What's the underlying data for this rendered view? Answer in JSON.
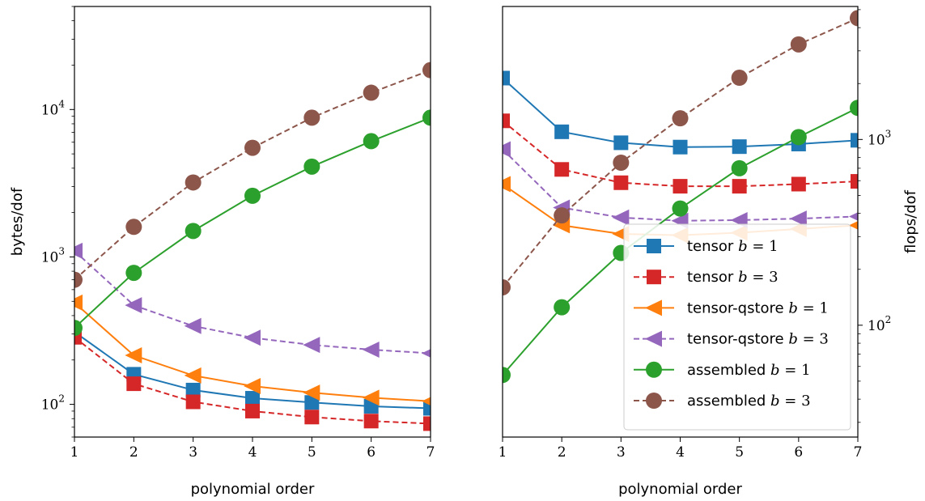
{
  "chart_data": [
    {
      "type": "line",
      "panel": "left",
      "xlabel": "polynomial order",
      "ylabel": "bytes/dof",
      "yscale": "log",
      "x": [
        1,
        2,
        3,
        4,
        5,
        6,
        7
      ],
      "xlim": [
        1,
        7
      ],
      "ylim": [
        60,
        50000
      ],
      "xticks": [
        "1",
        "2",
        "3",
        "4",
        "5",
        "6",
        "7"
      ],
      "yticks": [
        {
          "value": 100,
          "base": "10",
          "exp": "2"
        },
        {
          "value": 1000,
          "base": "10",
          "exp": "3"
        },
        {
          "value": 10000,
          "base": "10",
          "exp": "4"
        }
      ],
      "grid": false,
      "series": [
        {
          "name": "tensor b = 1",
          "color": "#1f77b4",
          "marker": "square",
          "dash": false,
          "values": [
            310,
            160,
            125,
            110,
            103,
            97,
            94
          ]
        },
        {
          "name": "tensor b = 3",
          "color": "#d62728",
          "marker": "square",
          "dash": true,
          "values": [
            285,
            138,
            104,
            90,
            82,
            77,
            74
          ]
        },
        {
          "name": "tensor-qstore b = 1",
          "color": "#ff7f0e",
          "marker": "triangle-left",
          "dash": false,
          "values": [
            490,
            215,
            157,
            133,
            120,
            111,
            105
          ]
        },
        {
          "name": "tensor-qstore b = 3",
          "color": "#9467bd",
          "marker": "triangle-left",
          "dash": true,
          "values": [
            1100,
            470,
            340,
            283,
            253,
            235,
            222
          ]
        },
        {
          "name": "assembled b = 1",
          "color": "#2ca02c",
          "marker": "circle",
          "dash": false,
          "values": [
            330,
            780,
            1500,
            2600,
            4100,
            6100,
            8800
          ]
        },
        {
          "name": "assembled b = 3",
          "color": "#8c564b",
          "marker": "circle",
          "dash": true,
          "values": [
            700,
            1600,
            3200,
            5500,
            8800,
            13000,
            18500
          ]
        }
      ]
    },
    {
      "type": "line",
      "panel": "right",
      "xlabel": "polynomial order",
      "ylabel": "flops/dof",
      "yscale": "log",
      "x": [
        1,
        2,
        3,
        4,
        5,
        6,
        7
      ],
      "xlim": [
        1,
        7
      ],
      "ylim": [
        25,
        5200
      ],
      "xticks": [
        "1",
        "2",
        "3",
        "4",
        "5",
        "6",
        "7"
      ],
      "yticks": [
        {
          "value": 100,
          "base": "10",
          "exp": "2"
        },
        {
          "value": 1000,
          "base": "10",
          "exp": "3"
        }
      ],
      "grid": false,
      "legend": {
        "loc": "lower-right",
        "entries": [
          {
            "label": "tensor",
            "b": "b",
            "eq": "= 1",
            "series": 0
          },
          {
            "label": "tensor",
            "b": "b",
            "eq": "= 3",
            "series": 1
          },
          {
            "label": "tensor-qstore",
            "b": "b",
            "eq": "= 1",
            "series": 2
          },
          {
            "label": "tensor-qstore",
            "b": "b",
            "eq": "= 3",
            "series": 3
          },
          {
            "label": "assembled",
            "b": "b",
            "eq": "= 1",
            "series": 4
          },
          {
            "label": "assembled",
            "b": "b",
            "eq": "= 3",
            "series": 5
          }
        ]
      },
      "series": [
        {
          "name": "tensor b = 1",
          "color": "#1f77b4",
          "marker": "square",
          "dash": false,
          "values": [
            2140,
            1100,
            960,
            910,
            915,
            945,
            990
          ]
        },
        {
          "name": "tensor b = 3",
          "color": "#d62728",
          "marker": "square",
          "dash": true,
          "values": [
            1260,
            690,
            585,
            560,
            560,
            575,
            595
          ]
        },
        {
          "name": "tensor-qstore b = 1",
          "color": "#ff7f0e",
          "marker": "triangle-left",
          "dash": false,
          "values": [
            575,
            345,
            310,
            305,
            315,
            330,
            345
          ]
        },
        {
          "name": "tensor-qstore b = 3",
          "color": "#9467bd",
          "marker": "triangle-left",
          "dash": true,
          "values": [
            885,
            430,
            380,
            365,
            368,
            375,
            385
          ]
        },
        {
          "name": "assembled b = 1",
          "color": "#2ca02c",
          "marker": "circle",
          "dash": false,
          "values": [
            54,
            125,
            245,
            425,
            700,
            1030,
            1480
          ]
        },
        {
          "name": "assembled b = 3",
          "color": "#8c564b",
          "marker": "circle",
          "dash": true,
          "values": [
            160,
            390,
            750,
            1300,
            2150,
            3250,
            4500
          ]
        }
      ]
    }
  ]
}
